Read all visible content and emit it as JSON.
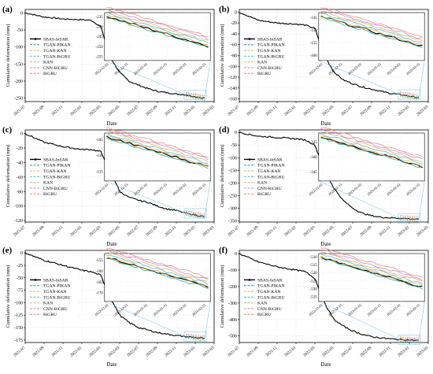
{
  "figure": {
    "layout": "3 rows x 2 columns",
    "colors": {
      "SBAS-InSAR": "#000000",
      "TGAN-PIKAN": "#1f9e89",
      "TGAN-KAN": "#f0a330",
      "TGAN-BiGRU": "#3cb3c8",
      "KAN": "#d9a95b",
      "CNN-BiGRU": "#cc79c0",
      "BiGRU": "#f08070",
      "inset-frame": "#66c2e0"
    }
  },
  "chart_data": [
    {
      "type": "line",
      "panel_label": "(a)",
      "xlabel": "Date",
      "ylabel": "Cumulative deformation (mm)",
      "x_ticks": [
        "2021-07",
        "2021-09",
        "2021-11",
        "2022-01",
        "2022-03",
        "2022-05",
        "2022-07",
        "2022-09",
        "2022-11",
        "2023-01",
        "2023-03"
      ],
      "y_ticks": [
        0,
        -50,
        -100,
        -150,
        -200,
        -250
      ],
      "ylim": [
        -260,
        10
      ],
      "legend": [
        "SBAS-InSAR",
        "TGAN-PIKAN",
        "TGAN-KAN",
        "TGAN-BiGRU",
        "KAN",
        "CNN-BiGRU",
        "BiGRU"
      ],
      "legend_position": "left-middle",
      "grid": true,
      "series": [
        {
          "name": "SBAS-InSAR",
          "x": [
            "2021-07",
            "2021-09",
            "2021-11",
            "2022-01",
            "2022-02",
            "2022-03",
            "2022-04",
            "2022-05",
            "2022-06",
            "2022-07",
            "2022-08",
            "2022-09",
            "2022-10",
            "2022-11",
            "2022-12",
            "2023-01",
            "2023-02"
          ],
          "values": [
            0,
            -12,
            -18,
            -20,
            -22,
            -40,
            -130,
            -175,
            -200,
            -212,
            -222,
            -230,
            -234,
            -238,
            -240,
            -246,
            -250
          ]
        }
      ],
      "inset": {
        "x_ticks": [
          "2022-12-01",
          "2022-12-15",
          "2023-01-01",
          "2023-01-15",
          "2023-02-01",
          "2023-02-15"
        ],
        "y_ticks": [
          -235,
          -240,
          -245,
          -250,
          -255
        ],
        "ylim": [
          -257,
          -233
        ]
      }
    },
    {
      "type": "line",
      "panel_label": "(b)",
      "xlabel": "Date",
      "ylabel": "Cumulative deformation (mm)",
      "x_ticks": [
        "2021-07",
        "2021-09",
        "2021-11",
        "2022-01",
        "2022-03",
        "2022-05",
        "2022-07",
        "2022-09",
        "2022-11",
        "2023-01",
        "2023-03"
      ],
      "y_ticks": [
        0,
        -20,
        -40,
        -60,
        -80,
        -100,
        -120,
        -140,
        -160
      ],
      "ylim": [
        -165,
        5
      ],
      "legend": [
        "SBAS-InSAR",
        "TGAN-PIKAN",
        "TGAN-KAN",
        "TGAN-BiGRU",
        "KAN",
        "CNN-BiGRU",
        "BiGRU"
      ],
      "legend_position": "left-middle",
      "grid": true,
      "series": [
        {
          "name": "SBAS-InSAR",
          "x": [
            "2021-07",
            "2021-09",
            "2021-11",
            "2022-01",
            "2022-02",
            "2022-03",
            "2022-04",
            "2022-05",
            "2022-06",
            "2022-07",
            "2022-08",
            "2022-09",
            "2022-10",
            "2022-11",
            "2022-12",
            "2023-01",
            "2023-02"
          ],
          "values": [
            0,
            -15,
            -20,
            -22,
            -24,
            -30,
            -80,
            -110,
            -125,
            -132,
            -138,
            -142,
            -146,
            -150,
            -152,
            -155,
            -158
          ]
        }
      ],
      "inset": {
        "x_ticks": [
          "2022-12-01",
          "2022-12-15",
          "2023-01-01",
          "2023-01-15",
          "2023-02-01",
          "2023-02-15"
        ],
        "y_ticks": [
          -145,
          -150,
          -155,
          -160
        ],
        "ylim": [
          -162,
          -143
        ]
      }
    },
    {
      "type": "line",
      "panel_label": "(c)",
      "xlabel": "Date",
      "ylabel": "Cumulative deformation (mm)",
      "x_ticks": [
        "2021-07",
        "2021-09",
        "2021-11",
        "2022-01",
        "2022-03",
        "2022-05",
        "2022-07",
        "2022-09",
        "2022-11",
        "2023-01",
        "2023-03"
      ],
      "y_ticks": [
        0,
        -20,
        -40,
        -60,
        -80,
        -100,
        -120
      ],
      "ylim": [
        -122,
        5
      ],
      "legend": [
        "SBAS-InSAR",
        "TGAN-PIKAN",
        "TGAN-KAN",
        "TGAN-BiGRU",
        "KAN",
        "CNN-BiGRU",
        "BiGRU"
      ],
      "legend_position": "left-middle",
      "grid": true,
      "series": [
        {
          "name": "SBAS-InSAR",
          "x": [
            "2021-07",
            "2021-09",
            "2021-11",
            "2022-01",
            "2022-02",
            "2022-03",
            "2022-04",
            "2022-05",
            "2022-06",
            "2022-07",
            "2022-08",
            "2022-09",
            "2022-10",
            "2022-11",
            "2022-12",
            "2023-01",
            "2023-02"
          ],
          "values": [
            0,
            -12,
            -18,
            -22,
            -22,
            -25,
            -50,
            -80,
            -88,
            -92,
            -95,
            -100,
            -104,
            -106,
            -110,
            -112,
            -115
          ]
        }
      ],
      "inset": {
        "x_ticks": [
          "2022-12-01",
          "2022-12-15",
          "2023-01-01",
          "2023-01-15",
          "2023-02-01",
          "2023-02-15"
        ],
        "y_ticks": [
          -105,
          -110,
          -115
        ],
        "ylim": [
          -118,
          -103
        ]
      }
    },
    {
      "type": "line",
      "panel_label": "(d)",
      "xlabel": "Date",
      "ylabel": "Cumulative deformation (mm)",
      "x_ticks": [
        "2021-07",
        "2021-09",
        "2021-11",
        "2022-01",
        "2022-03",
        "2022-05",
        "2022-07",
        "2022-09",
        "2022-11",
        "2023-01",
        "2023-03"
      ],
      "y_ticks": [
        0,
        -50,
        -100,
        -150,
        -200,
        -250,
        -300,
        -350
      ],
      "ylim": [
        -355,
        10
      ],
      "legend": [
        "SBAS-InSAR",
        "TGAN-PIKAN",
        "TGAN-KAN",
        "TGAN-BiGRU",
        "KAN",
        "CNN-BiGRU",
        "BiGRU"
      ],
      "legend_position": "left-middle",
      "grid": true,
      "series": [
        {
          "name": "SBAS-InSAR",
          "x": [
            "2021-07",
            "2021-09",
            "2021-11",
            "2022-01",
            "2022-02",
            "2022-03",
            "2022-04",
            "2022-05",
            "2022-06",
            "2022-07",
            "2022-08",
            "2022-09",
            "2022-10",
            "2022-11",
            "2022-12",
            "2023-01",
            "2023-02"
          ],
          "values": [
            0,
            -15,
            -20,
            -25,
            -30,
            -50,
            -150,
            -220,
            -270,
            -300,
            -320,
            -330,
            -336,
            -338,
            -340,
            -342,
            -345
          ]
        }
      ],
      "inset": {
        "x_ticks": [
          "2022-12-01",
          "2022-12-15",
          "2023-01-01",
          "2023-01-15",
          "2023-02-01",
          "2023-02-15"
        ],
        "y_ticks": [
          -335,
          -340,
          -345
        ],
        "ylim": [
          -348,
          -332
        ]
      }
    },
    {
      "type": "line",
      "panel_label": "(e)",
      "xlabel": "Date",
      "ylabel": "Cumulative deformation (mm)",
      "x_ticks": [
        "2021-07",
        "2021-09",
        "2021-11",
        "2022-01",
        "2022-03",
        "2022-05",
        "2022-07",
        "2022-09",
        "2022-11",
        "2023-01",
        "2023-03"
      ],
      "y_ticks": [
        0,
        -25,
        -50,
        -75,
        -100,
        -125,
        -150,
        -175
      ],
      "ylim": [
        -180,
        5
      ],
      "legend": [
        "SBAS-InSAR",
        "TGAN-PIKAN",
        "TGAN-KAN",
        "TGAN-BiGRU",
        "KAN",
        "CNN-BiGRU",
        "BiGRU"
      ],
      "legend_position": "left-middle",
      "grid": true,
      "series": [
        {
          "name": "SBAS-InSAR",
          "x": [
            "2021-07",
            "2021-09",
            "2021-11",
            "2022-01",
            "2022-02",
            "2022-03",
            "2022-04",
            "2022-05",
            "2022-06",
            "2022-07",
            "2022-08",
            "2022-09",
            "2022-10",
            "2022-11",
            "2022-12",
            "2023-01",
            "2023-02"
          ],
          "values": [
            0,
            -15,
            -25,
            -35,
            -38,
            -45,
            -90,
            -125,
            -140,
            -150,
            -155,
            -160,
            -163,
            -166,
            -168,
            -170,
            -172
          ]
        }
      ],
      "inset": {
        "x_ticks": [
          "2022-12-01",
          "2022-12-15",
          "2023-01-01",
          "2023-01-15",
          "2023-02-01",
          "2023-02-15"
        ],
        "y_ticks": [
          -155,
          -160,
          -165,
          -170
        ],
        "ylim": [
          -174,
          -152
        ]
      }
    },
    {
      "type": "line",
      "panel_label": "(f)",
      "xlabel": "Date",
      "ylabel": "Cumulative deformation (mm)",
      "x_ticks": [
        "2021-07",
        "2021-09",
        "2021-11",
        "2022-01",
        "2022-03",
        "2022-05",
        "2022-07",
        "2022-09",
        "2022-11",
        "2023-01",
        "2023-03"
      ],
      "y_ticks": [
        0,
        -100,
        -200,
        -300,
        -400,
        -500
      ],
      "ylim": [
        -540,
        20
      ],
      "legend": [
        "SBAS-InSAR",
        "TGAN-PIKAN",
        "TGAN-KAN",
        "TGAN-BiGRU",
        "KAN",
        "CNN-BiGRU",
        "BiGRU"
      ],
      "legend_position": "left-middle",
      "grid": true,
      "series": [
        {
          "name": "SBAS-InSAR",
          "x": [
            "2021-07",
            "2021-09",
            "2021-11",
            "2022-01",
            "2022-02",
            "2022-03",
            "2022-04",
            "2022-05",
            "2022-06",
            "2022-07",
            "2022-08",
            "2022-09",
            "2022-10",
            "2022-11",
            "2022-12",
            "2023-01",
            "2023-02"
          ],
          "values": [
            0,
            -50,
            -80,
            -100,
            -110,
            -150,
            -300,
            -400,
            -440,
            -470,
            -490,
            -505,
            -512,
            -518,
            -522,
            -525,
            -528
          ]
        }
      ],
      "inset": {
        "x_ticks": [
          "2022-12-01",
          "2022-12-15",
          "2023-01-01",
          "2023-01-15",
          "2023-02-01",
          "2023-02-15"
        ],
        "y_ticks": [
          -510,
          -515,
          -520,
          -525,
          -530,
          -535
        ],
        "ylim": [
          -538,
          -508
        ]
      }
    }
  ]
}
